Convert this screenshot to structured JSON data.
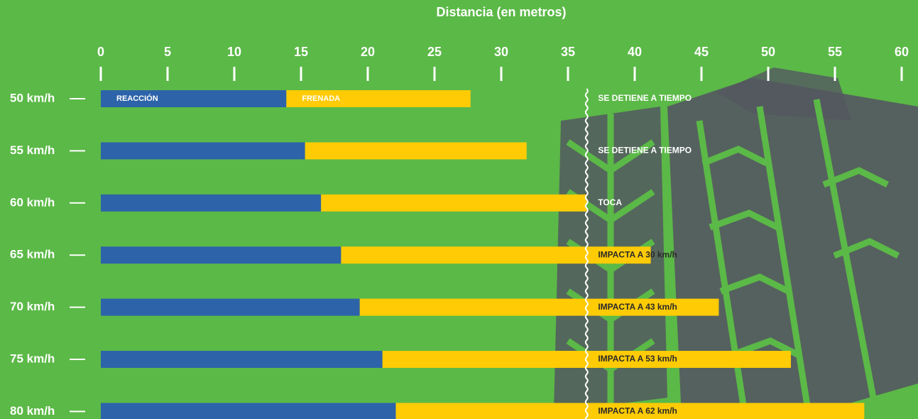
{
  "chart_data": {
    "type": "stacked_bar_horizontal",
    "title": "Distancia (en metros)",
    "categories": [
      "50 km/h",
      "55 km/h",
      "60 km/h",
      "65 km/h",
      "70 km/h",
      "75 km/h",
      "80 km/h"
    ],
    "series": [
      {
        "name": "REACCIÓN",
        "color": "#2d63a9",
        "values": [
          13.9,
          15.3,
          16.5,
          18.0,
          19.4,
          21.1,
          22.1
        ]
      },
      {
        "name": "FRENADA",
        "color": "#ffcb05",
        "values": [
          13.8,
          16.6,
          19.9,
          23.2,
          26.9,
          30.6,
          35.1
        ]
      }
    ],
    "annotations": [
      "SE DETIENE A TIEMPO",
      "SE DETIENE A TIEMPO",
      "TOCA",
      "IMPACTA A 30 km/h",
      "IMPACTA A 43 km/h",
      "IMPACTA A 53 km/h",
      "IMPACTA A 62 km/h"
    ],
    "reference_line": 36.4,
    "xlim": [
      0,
      60
    ],
    "xticks": [
      0,
      5,
      10,
      15,
      20,
      25,
      30,
      35,
      40,
      45,
      50,
      55,
      60
    ]
  }
}
